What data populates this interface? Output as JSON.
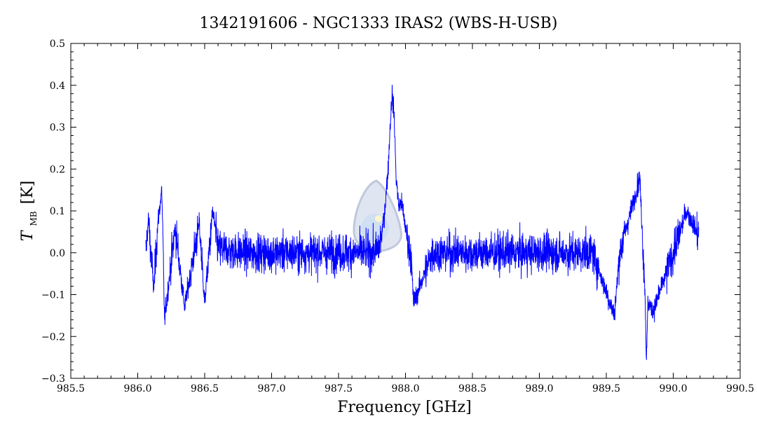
{
  "chart_data": {
    "type": "line",
    "title": "1342191606 - NGC1333 IRAS2 (WBS-H-USB)",
    "xlabel": "Frequency [GHz]",
    "ylabel": {
      "main": "T",
      "subscript": "MB",
      "unit": "[K]"
    },
    "xlim": [
      985.5,
      990.5
    ],
    "ylim": [
      -0.3,
      0.5
    ],
    "x_ticks": [
      "985.5",
      "986.0",
      "986.5",
      "987.0",
      "987.5",
      "988.0",
      "988.5",
      "989.0",
      "989.5",
      "990.0",
      "990.5"
    ],
    "x_tick_values": [
      985.5,
      986.0,
      986.5,
      987.0,
      987.5,
      988.0,
      988.5,
      989.0,
      989.5,
      990.0,
      990.5
    ],
    "y_ticks": [
      "0.5",
      "0.4",
      "0.3",
      "0.2",
      "0.1",
      "0.0",
      "−0.1",
      "−0.2",
      "−0.3"
    ],
    "y_tick_values": [
      0.5,
      0.4,
      0.3,
      0.2,
      0.1,
      0.0,
      -0.1,
      -0.2,
      -0.3
    ],
    "grid": false,
    "series": [
      {
        "color": "#0000ff",
        "x_range": [
          986.06,
          990.19
        ],
        "noise_rms": 0.032,
        "x": [
          986.06,
          986.08,
          986.12,
          986.15,
          986.18,
          986.2,
          986.28,
          986.35,
          986.46,
          986.5,
          986.56,
          986.6,
          986.8,
          987.0,
          987.2,
          987.4,
          987.6,
          987.7,
          987.76,
          987.8,
          987.83,
          987.85,
          987.87,
          987.885,
          987.9,
          987.915,
          987.93,
          987.95,
          987.97,
          988.0,
          988.02,
          988.04,
          988.06,
          988.2,
          988.4,
          988.6,
          988.8,
          989.0,
          989.2,
          989.4,
          989.56,
          989.6,
          989.75,
          989.79,
          989.8,
          989.81,
          989.85,
          990.0,
          990.1,
          990.19
        ],
        "y": [
          0.0,
          0.08,
          -0.09,
          0.07,
          0.15,
          -0.16,
          0.06,
          -0.13,
          0.07,
          -0.12,
          0.1,
          0.01,
          0.0,
          0.0,
          0.0,
          0.0,
          0.0,
          0.0,
          0.0,
          0.01,
          0.06,
          0.12,
          0.2,
          0.3,
          0.38,
          0.33,
          0.18,
          0.11,
          0.12,
          0.06,
          0.02,
          0.0,
          -0.12,
          0.0,
          0.0,
          0.0,
          0.0,
          0.0,
          0.0,
          0.0,
          -0.15,
          0.0,
          0.18,
          -0.1,
          -0.27,
          -0.12,
          -0.14,
          0.0,
          0.1,
          0.04
        ]
      }
    ]
  }
}
